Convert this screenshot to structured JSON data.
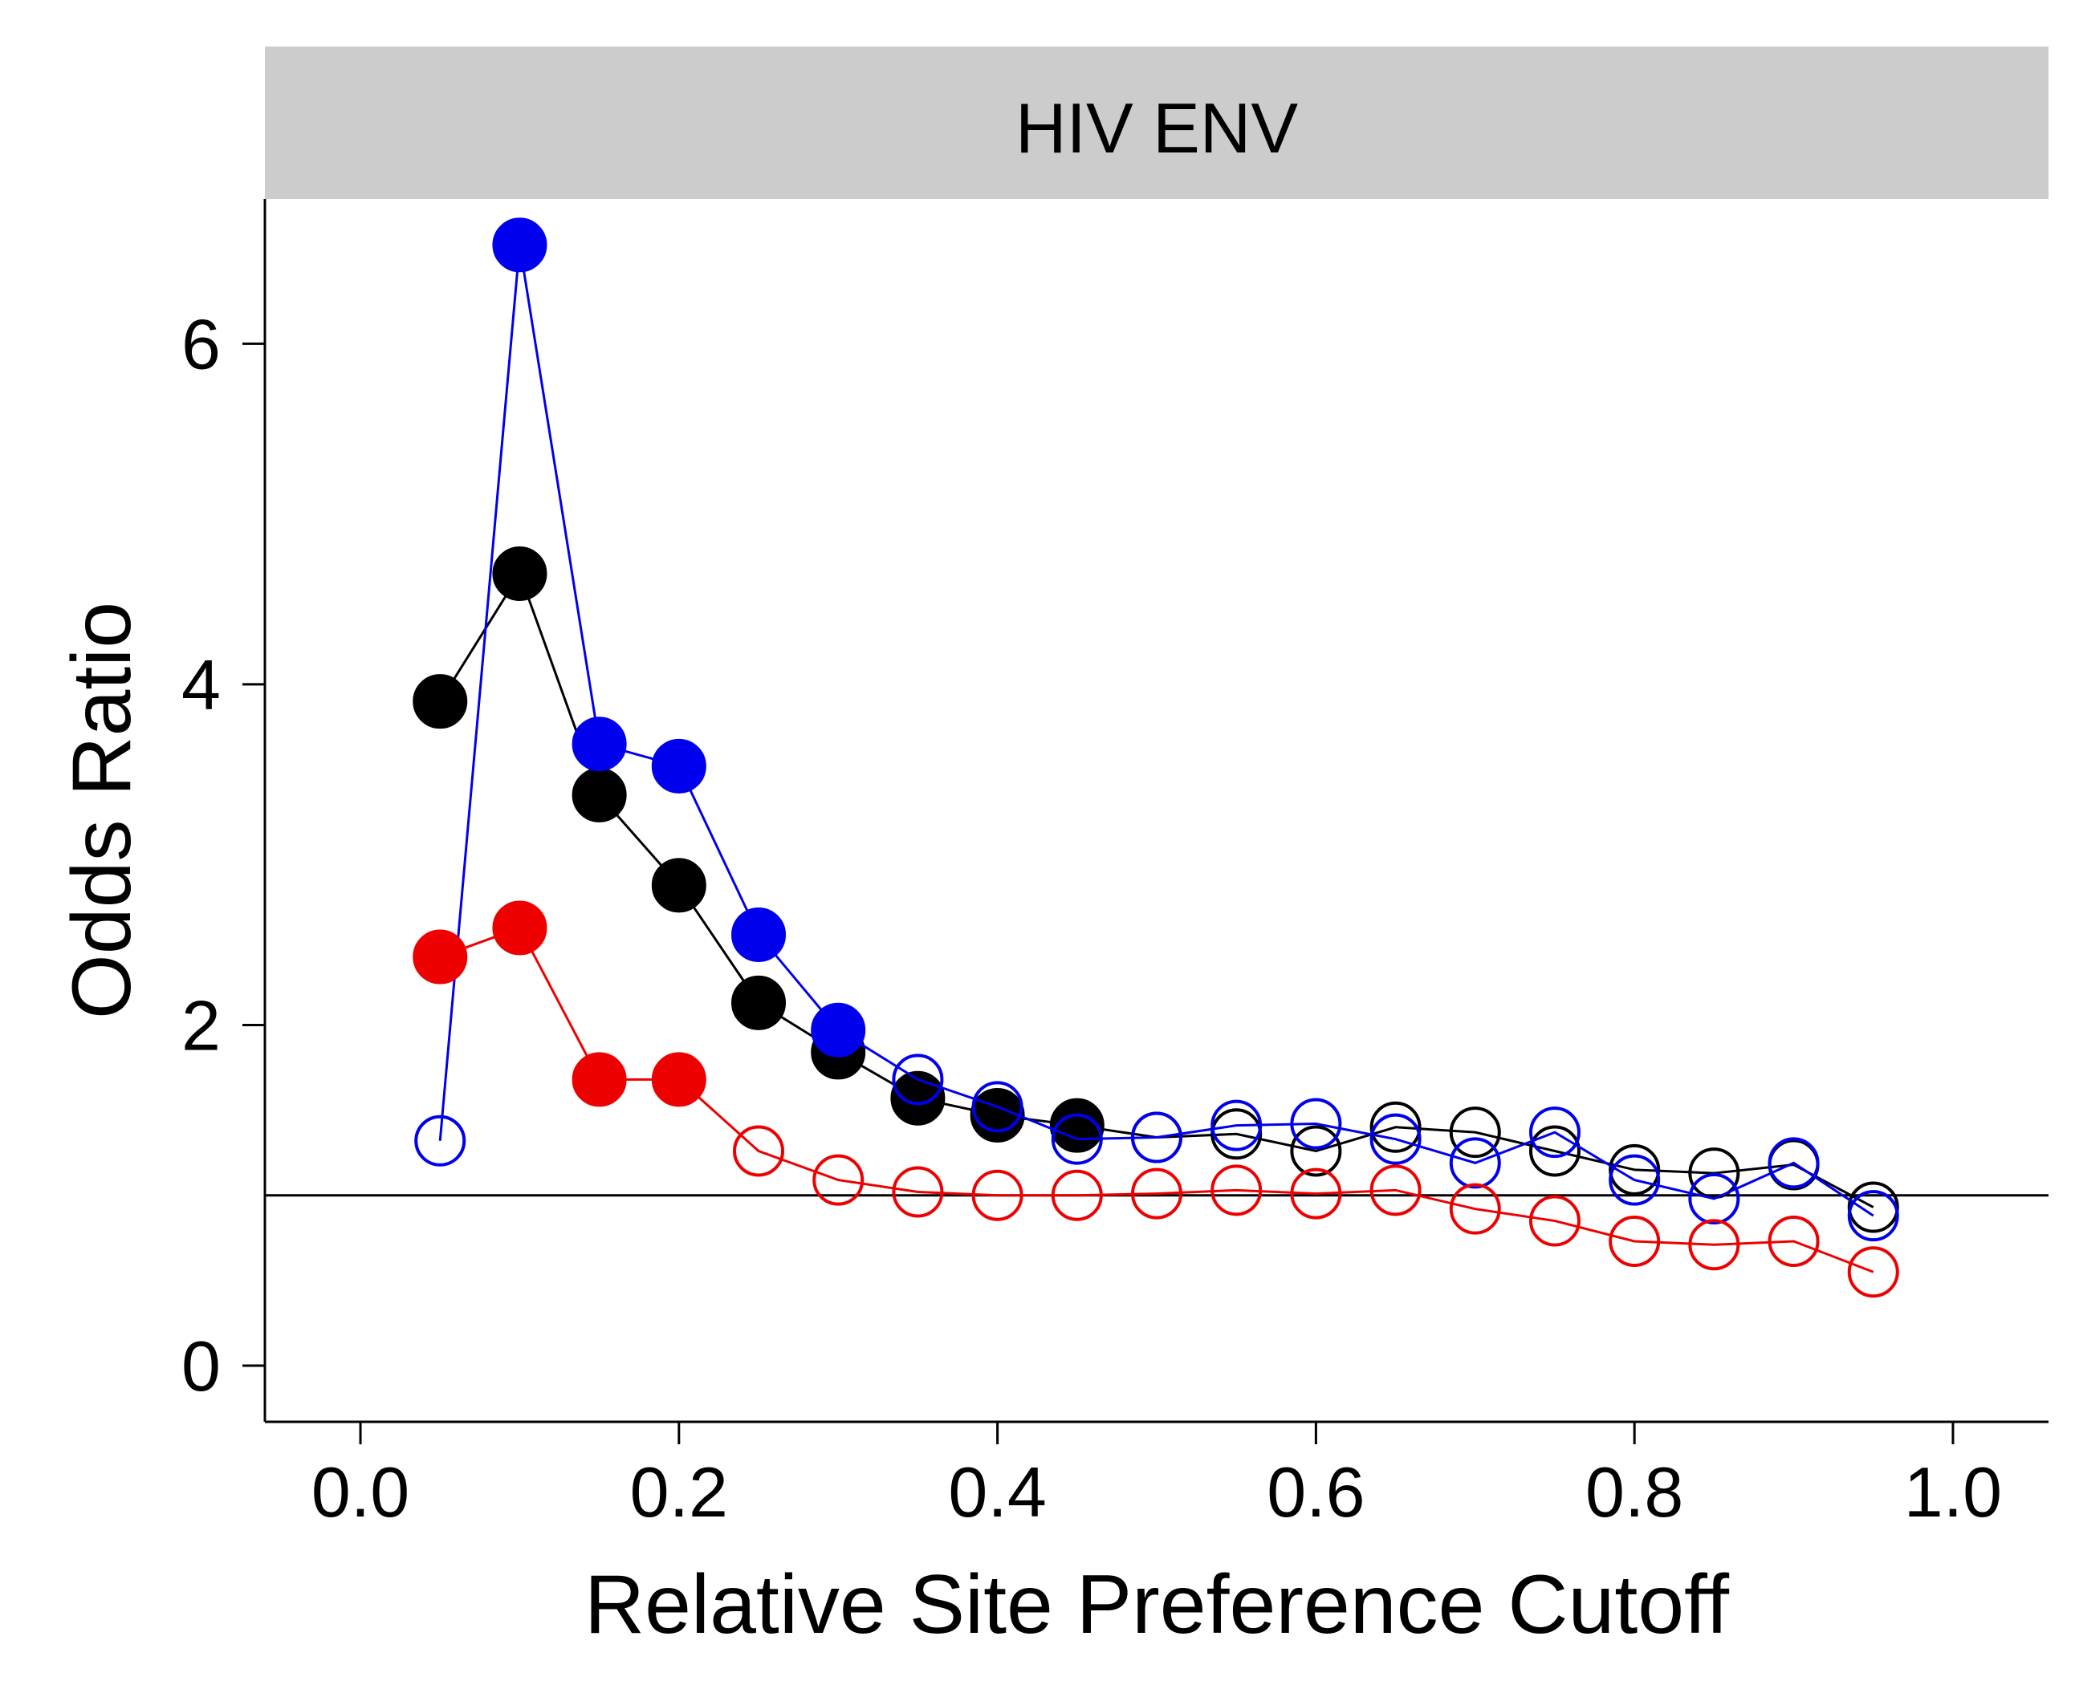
{
  "chart_data": {
    "type": "line",
    "title": "HIV ENV",
    "xlabel": "Relative Site Preference Cutoff",
    "ylabel": "Odds Ratio",
    "xlim": [
      -0.06,
      1.06
    ],
    "ylim": [
      -0.33,
      6.85
    ],
    "x_ticks": [
      "0.0",
      "0.2",
      "0.4",
      "0.6",
      "0.8",
      "1.0"
    ],
    "y_ticks": [
      "0",
      "2",
      "4",
      "6"
    ],
    "reference_line": 1.0,
    "grid": false,
    "marker_note": "filled circles and open circles",
    "x": [
      0.05,
      0.1,
      0.15,
      0.2,
      0.25,
      0.3,
      0.35,
      0.4,
      0.45,
      0.5,
      0.55,
      0.6,
      0.65,
      0.7,
      0.75,
      0.8,
      0.85,
      0.9,
      0.95
    ],
    "series": [
      {
        "color": "#000000",
        "values": [
          3.9,
          4.65,
          3.35,
          2.82,
          2.13,
          1.84,
          1.57,
          1.47,
          1.41,
          1.34,
          1.36,
          1.26,
          1.4,
          1.37,
          1.26,
          1.15,
          1.13,
          1.18,
          0.93
        ],
        "filled": [
          true,
          true,
          true,
          true,
          true,
          true,
          true,
          true,
          true,
          false,
          false,
          false,
          false,
          false,
          false,
          false,
          false,
          false,
          false
        ]
      },
      {
        "color": "#0000ee",
        "values": [
          1.32,
          6.58,
          3.65,
          3.52,
          2.53,
          1.97,
          1.68,
          1.52,
          1.33,
          1.34,
          1.41,
          1.42,
          1.33,
          1.19,
          1.37,
          1.09,
          0.98,
          1.19,
          0.88
        ],
        "filled": [
          false,
          true,
          true,
          true,
          true,
          true,
          false,
          false,
          false,
          false,
          false,
          false,
          false,
          false,
          false,
          false,
          false,
          false,
          false
        ]
      },
      {
        "color": "#ee0000",
        "values": [
          2.4,
          2.57,
          1.68,
          1.68,
          1.26,
          1.09,
          1.02,
          1.0,
          1.0,
          1.01,
          1.03,
          1.01,
          1.03,
          0.92,
          0.85,
          0.73,
          0.71,
          0.73,
          0.55
        ],
        "filled": [
          true,
          true,
          true,
          true,
          false,
          false,
          false,
          false,
          false,
          false,
          false,
          false,
          false,
          false,
          false,
          false,
          false,
          false,
          false
        ]
      }
    ]
  }
}
